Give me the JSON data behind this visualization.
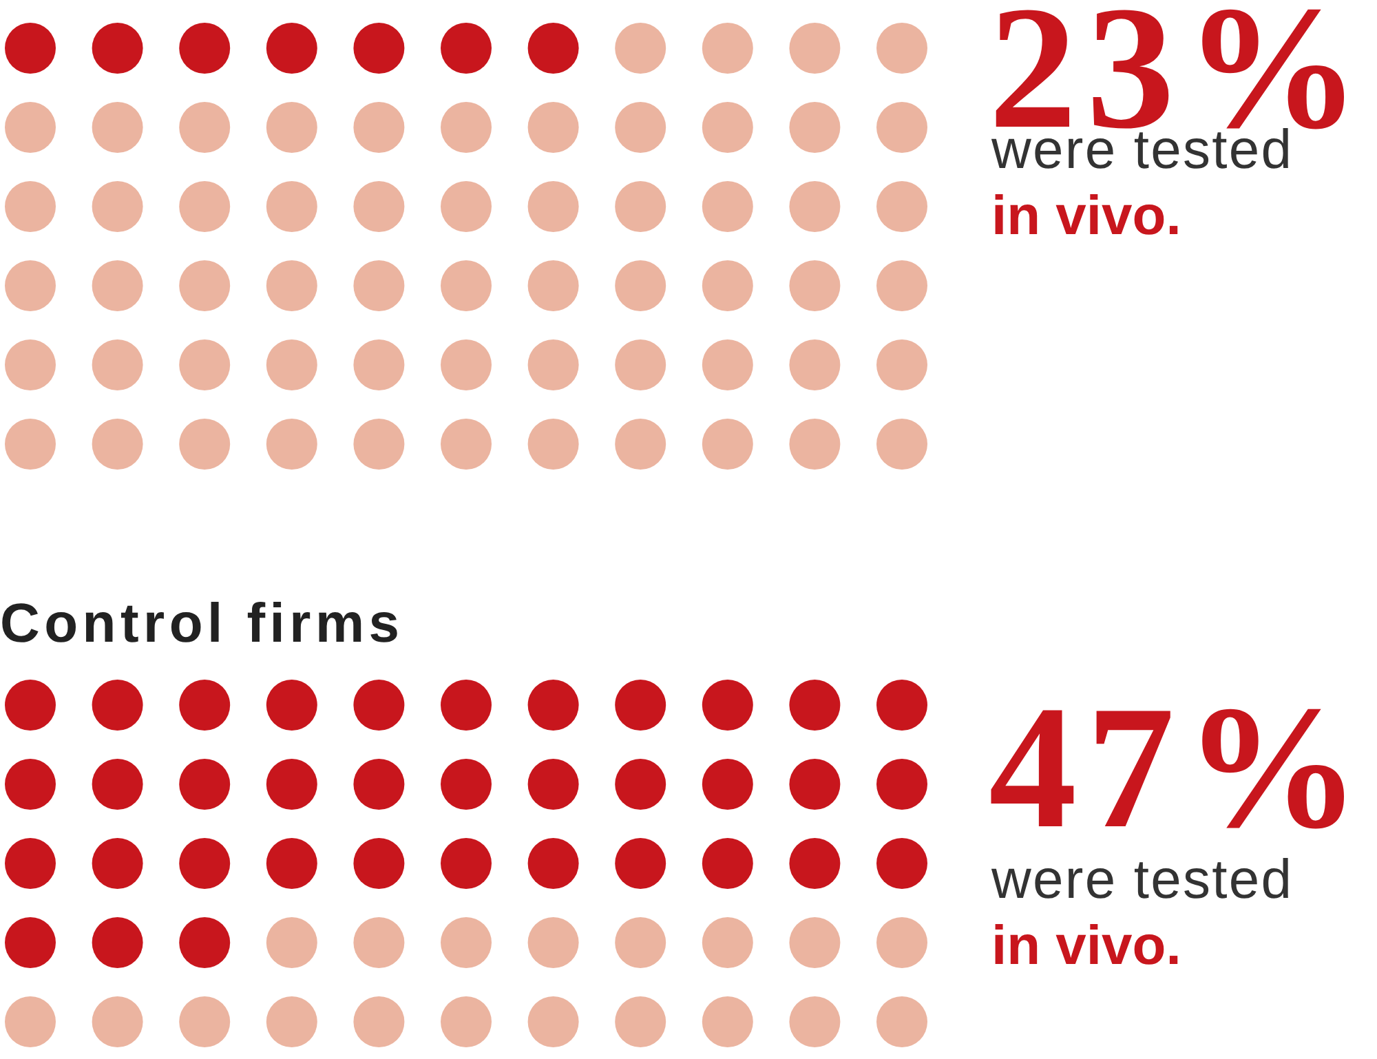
{
  "chart_data": [
    {
      "type": "other",
      "values": [
        23
      ],
      "value_labels": [
        "23%"
      ],
      "color": "#c8161d",
      "annotations": [
        "were tested",
        "in vivo."
      ]
    },
    {
      "type": "other",
      "title": "Control firms",
      "values": [
        47
      ],
      "value_labels": [
        "47%"
      ],
      "color": "#c8161d",
      "annotations": [
        "were tested",
        "in vivo."
      ]
    }
  ]
}
